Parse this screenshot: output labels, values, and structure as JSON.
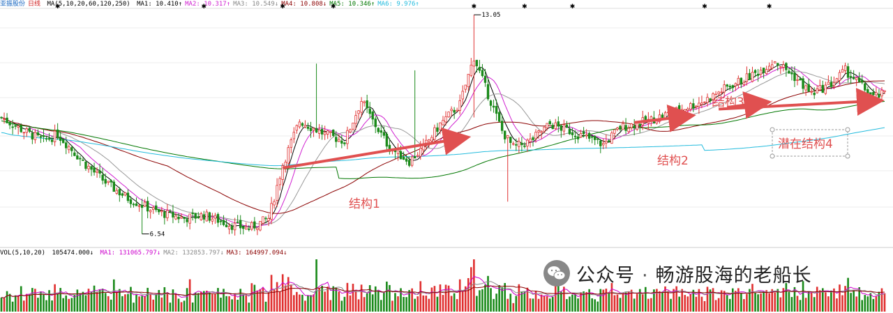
{
  "header": {
    "stock_name": "亚振股份",
    "period": "日线",
    "ma_label": "MA(5,10,20,60,120,250)",
    "ma": [
      {
        "name": "MA1:",
        "value": "10.410",
        "arrow": "↑",
        "color": "#000000"
      },
      {
        "name": "MA2:",
        "value": "10.317",
        "arrow": "↑",
        "color": "#d020d0"
      },
      {
        "name": "MA3:",
        "value": "10.549",
        "arrow": "↓",
        "color": "#888888"
      },
      {
        "name": "MA4:",
        "value": "10.808",
        "arrow": "↓",
        "color": "#8b0000"
      },
      {
        "name": "MA5:",
        "value": "10.346",
        "arrow": "↑",
        "color": "#007700"
      },
      {
        "name": "MA6:",
        "value": "9.976",
        "arrow": "↑",
        "color": "#22bbdd"
      }
    ]
  },
  "volume_header": {
    "label": "VOL(5,10,20)",
    "vol": {
      "value": "105474.000",
      "arrow": "↓"
    },
    "ma": [
      {
        "name": "MA1:",
        "value": "131065.797",
        "arrow": "↓",
        "color": "#cc00cc"
      },
      {
        "name": "MA2:",
        "value": "132853.797",
        "arrow": "↓",
        "color": "#888888"
      },
      {
        "name": "MA3:",
        "value": "164997.094",
        "arrow": "↓",
        "color": "#8b0000"
      }
    ]
  },
  "chart_data": {
    "type": "candlestick",
    "price_annotations": [
      {
        "label": "6.54",
        "kind": "low",
        "bar_index": 50
      },
      {
        "label": "13.05",
        "kind": "high",
        "bar_index": 168
      }
    ],
    "structures": [
      {
        "label": "结构1",
        "from_price": 8.5,
        "to_price": 9.4,
        "from_bar": 100,
        "to_bar": 165
      },
      {
        "label": "结构2",
        "from_price": 9.85,
        "to_price": 10.05,
        "from_bar": 225,
        "to_bar": 245
      },
      {
        "label": "结构3",
        "from_price": 10.3,
        "to_price": 10.45,
        "from_bar": 258,
        "to_bar": 272
      },
      {
        "label": "潜在结构4",
        "from_price": 10.25,
        "to_price": 10.5,
        "from_bar": 255,
        "to_bar": 312
      }
    ],
    "colors": {
      "up": "#e03030",
      "down": "#1a8a1a",
      "arrow": "#e05050",
      "grid": "#eeeeee"
    }
  },
  "watermark": {
    "source": "公众号",
    "separator": "·",
    "author": "畅游股海的老船长"
  }
}
